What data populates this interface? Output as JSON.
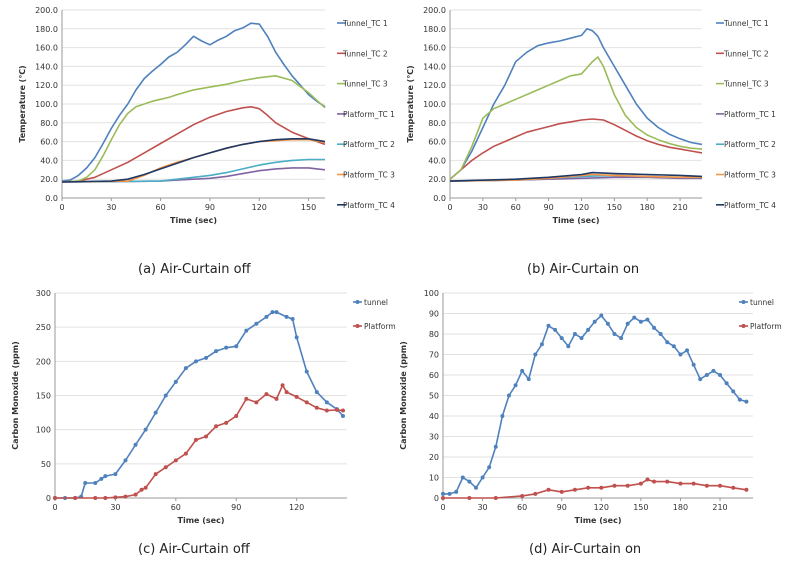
{
  "chart_data": [
    {
      "type": "line",
      "caption": "(a) Air-Curtain off",
      "xlabel": "Time (sec)",
      "ylabel": "Temperature (℃)",
      "xlim": [
        0,
        160
      ],
      "ylim": [
        0,
        200
      ],
      "xticks": [
        0,
        30,
        60,
        90,
        120,
        150
      ],
      "yticks": [
        "0.0",
        "20.0",
        "40.0",
        "60.0",
        "80.0",
        "100.0",
        "120.0",
        "140.0",
        "160.0",
        "180.0",
        "200.0"
      ],
      "legend": "right",
      "marker": false,
      "series": [
        {
          "name": "Tunnel_TC 1",
          "color": "#4f81bd",
          "x": [
            0,
            5,
            10,
            15,
            20,
            25,
            30,
            35,
            40,
            45,
            50,
            55,
            60,
            65,
            70,
            75,
            80,
            85,
            90,
            95,
            100,
            105,
            110,
            115,
            120,
            125,
            130,
            135,
            140,
            145,
            150,
            155,
            160
          ],
          "values": [
            18,
            19,
            24,
            32,
            43,
            58,
            74,
            88,
            100,
            115,
            127,
            135,
            142,
            150,
            155,
            163,
            172,
            167,
            163,
            168,
            172,
            178,
            181,
            186,
            185,
            172,
            155,
            142,
            130,
            120,
            110,
            103,
            97
          ]
        },
        {
          "name": "Tunnel_TC 2",
          "color": "#c0504d",
          "x": [
            0,
            10,
            20,
            30,
            40,
            50,
            60,
            70,
            80,
            90,
            100,
            110,
            115,
            120,
            125,
            130,
            140,
            150,
            160
          ],
          "values": [
            17,
            18,
            22,
            30,
            38,
            48,
            58,
            68,
            78,
            86,
            92,
            96,
            97,
            95,
            88,
            80,
            70,
            63,
            57
          ]
        },
        {
          "name": "Tunnel_TC 3",
          "color": "#9bbb59",
          "x": [
            0,
            10,
            15,
            20,
            25,
            30,
            35,
            40,
            45,
            50,
            55,
            60,
            65,
            70,
            80,
            90,
            100,
            110,
            120,
            130,
            140,
            150,
            160
          ],
          "values": [
            17,
            18,
            22,
            30,
            45,
            62,
            78,
            90,
            97,
            100,
            103,
            105,
            107,
            110,
            115,
            118,
            121,
            125,
            128,
            130,
            125,
            112,
            96
          ]
        },
        {
          "name": "Platform_TC 1",
          "color": "#8064a2",
          "x": [
            0,
            60,
            70,
            80,
            90,
            100,
            110,
            120,
            130,
            140,
            150,
            160
          ],
          "values": [
            17,
            18,
            19,
            20,
            21,
            23,
            26,
            29,
            31,
            32,
            32,
            30
          ]
        },
        {
          "name": "Platform_TC 2",
          "color": "#4bacc6",
          "x": [
            0,
            60,
            70,
            80,
            90,
            100,
            110,
            120,
            130,
            140,
            150,
            160
          ],
          "values": [
            17,
            18,
            20,
            22,
            24,
            27,
            31,
            35,
            38,
            40,
            41,
            41
          ]
        },
        {
          "name": "Platform_TC 3",
          "color": "#f79646",
          "x": [
            0,
            40,
            50,
            60,
            70,
            80,
            90,
            100,
            110,
            120,
            130,
            140,
            150,
            160
          ],
          "values": [
            17,
            18,
            24,
            32,
            38,
            43,
            48,
            53,
            57,
            60,
            61,
            62,
            62,
            59
          ]
        },
        {
          "name": "Platform_TC 4",
          "color": "#1f3864",
          "x": [
            0,
            30,
            40,
            50,
            60,
            70,
            80,
            90,
            100,
            110,
            120,
            130,
            140,
            150,
            160
          ],
          "values": [
            17,
            18,
            20,
            25,
            31,
            37,
            43,
            48,
            53,
            57,
            60,
            62,
            63,
            63,
            60
          ]
        }
      ]
    },
    {
      "type": "line",
      "caption": "(b) Air-Curtain on",
      "xlabel": "Time (sec)",
      "ylabel": "Temperature (℃)",
      "xlim": [
        0,
        230
      ],
      "ylim": [
        0,
        200
      ],
      "xticks": [
        0,
        30,
        60,
        90,
        120,
        150,
        180,
        210
      ],
      "yticks": [
        "0.0",
        "20.0",
        "40.0",
        "60.0",
        "80.0",
        "100.0",
        "120.0",
        "140.0",
        "160.0",
        "180.0",
        "200.0"
      ],
      "legend": "right",
      "marker": false,
      "series": [
        {
          "name": "Tunnel_TC 1",
          "color": "#4f81bd",
          "x": [
            0,
            10,
            20,
            30,
            40,
            50,
            60,
            70,
            80,
            90,
            100,
            110,
            120,
            125,
            130,
            135,
            140,
            150,
            160,
            170,
            180,
            190,
            200,
            210,
            220,
            230
          ],
          "values": [
            20,
            30,
            50,
            75,
            100,
            120,
            145,
            155,
            162,
            165,
            167,
            170,
            173,
            180,
            178,
            172,
            160,
            140,
            120,
            100,
            85,
            75,
            68,
            63,
            59,
            57
          ]
        },
        {
          "name": "Tunnel_TC 2",
          "color": "#c0504d",
          "x": [
            0,
            10,
            20,
            30,
            40,
            50,
            60,
            70,
            80,
            90,
            100,
            110,
            120,
            130,
            140,
            150,
            160,
            170,
            180,
            190,
            200,
            210,
            220,
            230
          ],
          "values": [
            20,
            30,
            40,
            48,
            55,
            60,
            65,
            70,
            73,
            76,
            79,
            81,
            83,
            84,
            83,
            78,
            72,
            66,
            61,
            57,
            54,
            52,
            50,
            48
          ]
        },
        {
          "name": "Tunnel_TC 3",
          "color": "#9bbb59",
          "x": [
            0,
            10,
            20,
            30,
            40,
            50,
            60,
            70,
            80,
            90,
            100,
            110,
            120,
            130,
            135,
            140,
            150,
            160,
            170,
            180,
            190,
            200,
            210,
            220,
            230
          ],
          "values": [
            20,
            30,
            55,
            85,
            95,
            100,
            105,
            110,
            115,
            120,
            125,
            130,
            132,
            145,
            150,
            140,
            110,
            88,
            75,
            67,
            62,
            58,
            55,
            53,
            52
          ]
        },
        {
          "name": "Platform_TC 1",
          "color": "#8064a2",
          "x": [
            0,
            60,
            90,
            120,
            150,
            180,
            210,
            230
          ],
          "values": [
            18,
            19,
            20,
            21,
            22,
            22,
            21,
            21
          ]
        },
        {
          "name": "Platform_TC 2",
          "color": "#4bacc6",
          "x": [
            0,
            60,
            90,
            120,
            150,
            180,
            210,
            230
          ],
          "values": [
            18,
            19,
            21,
            23,
            24,
            23,
            22,
            22
          ]
        },
        {
          "name": "Platform_TC 3",
          "color": "#f79646",
          "x": [
            0,
            60,
            90,
            120,
            130,
            150,
            180,
            210,
            230
          ],
          "values": [
            18,
            19,
            21,
            24,
            25,
            24,
            23,
            22,
            22
          ]
        },
        {
          "name": "Platform_TC 4",
          "color": "#1f3864",
          "x": [
            0,
            60,
            90,
            120,
            130,
            150,
            180,
            210,
            230
          ],
          "values": [
            18,
            20,
            22,
            25,
            27,
            26,
            25,
            24,
            23
          ]
        }
      ]
    },
    {
      "type": "line",
      "caption": "(c) Air-Curtain off",
      "xlabel": "Time (sec)",
      "ylabel": "Carbon Monoxide (ppm)",
      "xlim": [
        0,
        145
      ],
      "ylim": [
        0,
        300
      ],
      "xticks": [
        0,
        30,
        60,
        90,
        120
      ],
      "yticks": [
        "0",
        "50",
        "100",
        "150",
        "200",
        "250",
        "300"
      ],
      "legend": "right",
      "marker": true,
      "series": [
        {
          "name": "tunnel",
          "color": "#4f81bd",
          "x": [
            0,
            5,
            10,
            13,
            15,
            20,
            23,
            25,
            30,
            35,
            40,
            45,
            50,
            55,
            60,
            65,
            70,
            75,
            80,
            85,
            90,
            95,
            100,
            105,
            108,
            110,
            115,
            118,
            120,
            125,
            130,
            135,
            140,
            143
          ],
          "values": [
            0,
            0,
            0,
            2,
            22,
            22,
            28,
            32,
            35,
            55,
            78,
            100,
            125,
            150,
            170,
            190,
            200,
            205,
            215,
            220,
            222,
            245,
            255,
            265,
            272,
            272,
            265,
            262,
            235,
            185,
            155,
            140,
            130,
            120
          ]
        },
        {
          "name": "Platform",
          "color": "#c0504d",
          "x": [
            0,
            10,
            20,
            25,
            30,
            35,
            40,
            43,
            45,
            50,
            55,
            60,
            65,
            70,
            75,
            80,
            85,
            90,
            95,
            100,
            105,
            110,
            113,
            115,
            120,
            125,
            130,
            135,
            140,
            143
          ],
          "values": [
            0,
            0,
            0,
            0,
            1,
            2,
            5,
            12,
            15,
            35,
            45,
            55,
            65,
            85,
            90,
            105,
            110,
            120,
            145,
            140,
            152,
            145,
            165,
            155,
            148,
            140,
            132,
            128,
            129,
            128
          ]
        }
      ]
    },
    {
      "type": "line",
      "caption": "(d) Air-Curtain on",
      "xlabel": "Time (sec)",
      "ylabel": "Carbon Monoxide (ppm)",
      "xlim": [
        0,
        235
      ],
      "ylim": [
        0,
        100
      ],
      "xticks": [
        0,
        30,
        60,
        90,
        120,
        150,
        180,
        210
      ],
      "yticks": [
        "0",
        "10",
        "20",
        "30",
        "40",
        "50",
        "60",
        "70",
        "80",
        "90",
        "100"
      ],
      "legend": "right",
      "marker": true,
      "series": [
        {
          "name": "tunnel",
          "color": "#4f81bd",
          "x": [
            0,
            5,
            10,
            15,
            20,
            25,
            30,
            35,
            40,
            45,
            50,
            55,
            60,
            65,
            70,
            75,
            80,
            85,
            90,
            95,
            100,
            105,
            110,
            115,
            120,
            125,
            130,
            135,
            140,
            145,
            150,
            155,
            160,
            165,
            170,
            175,
            180,
            185,
            190,
            195,
            200,
            205,
            210,
            215,
            220,
            225,
            230
          ],
          "values": [
            2,
            2,
            3,
            10,
            8,
            5,
            10,
            15,
            25,
            40,
            50,
            55,
            62,
            58,
            70,
            75,
            84,
            82,
            78,
            74,
            80,
            78,
            82,
            86,
            89,
            85,
            80,
            78,
            85,
            88,
            86,
            87,
            83,
            80,
            76,
            74,
            70,
            72,
            65,
            58,
            60,
            62,
            60,
            56,
            52,
            48,
            47
          ]
        },
        {
          "name": "Platform",
          "color": "#c0504d",
          "x": [
            0,
            20,
            40,
            60,
            70,
            80,
            90,
            100,
            110,
            120,
            130,
            140,
            150,
            155,
            160,
            170,
            180,
            190,
            200,
            210,
            220,
            230
          ],
          "values": [
            0,
            0,
            0,
            1,
            2,
            4,
            3,
            4,
            5,
            5,
            6,
            6,
            7,
            9,
            8,
            8,
            7,
            7,
            6,
            6,
            5,
            4
          ]
        }
      ]
    }
  ]
}
